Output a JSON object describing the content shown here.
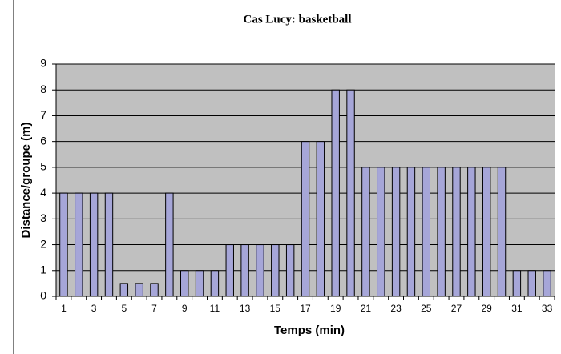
{
  "chart_data": {
    "type": "bar",
    "title": "Cas Lucy: basketball",
    "xlabel": "Temps (min)",
    "ylabel": "Distance/groupe (m)",
    "categories": [
      1,
      null,
      3,
      null,
      5,
      null,
      7,
      null,
      9,
      null,
      11,
      null,
      13,
      null,
      15,
      null,
      17,
      null,
      19,
      null,
      21,
      null,
      23,
      null,
      25,
      null,
      27,
      null,
      29,
      null,
      31,
      null,
      33
    ],
    "values": [
      4,
      4,
      4,
      4,
      0.5,
      0.5,
      0.5,
      4,
      1,
      1,
      1,
      2,
      2,
      2,
      2,
      2,
      6,
      6,
      8,
      8,
      5,
      5,
      5,
      5,
      5,
      5,
      5,
      5,
      5,
      5,
      1,
      1,
      1
    ],
    "color": "#a6a6d8",
    "ylim": [
      0,
      9
    ],
    "yticks": [
      0,
      1,
      2,
      3,
      4,
      5,
      6,
      7,
      8,
      9
    ],
    "grid": true
  }
}
